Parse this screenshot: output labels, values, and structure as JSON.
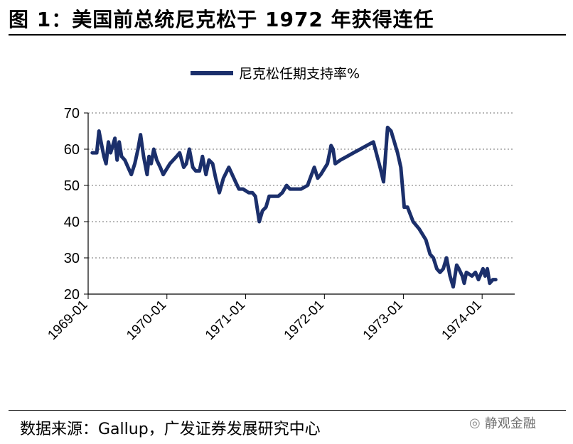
{
  "header": {
    "title": "图 1：美国前总统尼克松于 1972 年获得连任"
  },
  "footer": {
    "source": "数据来源：Gallup，广发证券发展研究中心",
    "watermark_text": "静观金融",
    "watermark_icon": "wechat-icon"
  },
  "colors": {
    "series": "#1b2f6b",
    "grid": "#a0a0a0",
    "axis": "#000000"
  },
  "chart_data": {
    "type": "line",
    "title": "",
    "xlabel": "",
    "ylabel": "",
    "ylim": [
      20,
      70
    ],
    "yticks": [
      20,
      30,
      40,
      50,
      60,
      70
    ],
    "xticks": [
      "1969-01",
      "1970-01",
      "1971-01",
      "1972-01",
      "1973-01",
      "1974-01"
    ],
    "grid": "horizontal dotted",
    "legend": "top-center",
    "series": [
      {
        "name": "尼克松任期支持率%",
        "points": [
          [
            "1969-01-20",
            59
          ],
          [
            "1969-02-01",
            59
          ],
          [
            "1969-02-10",
            59
          ],
          [
            "1969-02-20",
            65
          ],
          [
            "1969-03-05",
            61
          ],
          [
            "1969-03-15",
            58
          ],
          [
            "1969-03-25",
            56
          ],
          [
            "1969-04-05",
            62
          ],
          [
            "1969-04-15",
            59
          ],
          [
            "1969-04-25",
            61
          ],
          [
            "1969-05-05",
            63
          ],
          [
            "1969-05-15",
            57
          ],
          [
            "1969-05-25",
            62
          ],
          [
            "1969-06-05",
            58
          ],
          [
            "1969-06-20",
            57
          ],
          [
            "1969-07-05",
            55
          ],
          [
            "1969-07-20",
            53
          ],
          [
            "1969-08-05",
            56
          ],
          [
            "1969-08-20",
            60
          ],
          [
            "1969-09-01",
            64
          ],
          [
            "1969-09-15",
            58
          ],
          [
            "1969-10-01",
            53
          ],
          [
            "1969-10-10",
            58
          ],
          [
            "1969-10-20",
            56
          ],
          [
            "1969-11-01",
            60
          ],
          [
            "1969-11-15",
            57
          ],
          [
            "1969-12-01",
            55
          ],
          [
            "1969-12-15",
            53
          ],
          [
            "1970-01-15",
            56
          ],
          [
            "1970-02-15",
            58
          ],
          [
            "1970-03-01",
            59
          ],
          [
            "1970-03-20",
            55
          ],
          [
            "1970-04-01",
            56
          ],
          [
            "1970-04-15",
            60
          ],
          [
            "1970-05-01",
            55
          ],
          [
            "1970-05-15",
            54
          ],
          [
            "1970-06-01",
            54
          ],
          [
            "1970-06-15",
            58
          ],
          [
            "1970-07-01",
            53
          ],
          [
            "1970-07-15",
            57
          ],
          [
            "1970-08-01",
            56
          ],
          [
            "1970-08-15",
            52
          ],
          [
            "1970-09-01",
            48
          ],
          [
            "1970-09-20",
            52
          ],
          [
            "1970-10-15",
            55
          ],
          [
            "1970-11-15",
            51
          ],
          [
            "1970-12-01",
            49
          ],
          [
            "1970-12-20",
            49
          ],
          [
            "1971-01-15",
            48
          ],
          [
            "1971-02-01",
            48
          ],
          [
            "1971-02-15",
            47
          ],
          [
            "1971-03-05",
            40
          ],
          [
            "1971-03-20",
            43
          ],
          [
            "1971-04-05",
            44
          ],
          [
            "1971-04-20",
            47
          ],
          [
            "1971-05-10",
            47
          ],
          [
            "1971-06-01",
            47
          ],
          [
            "1971-06-20",
            48
          ],
          [
            "1971-07-10",
            50
          ],
          [
            "1971-07-25",
            49
          ],
          [
            "1971-08-15",
            49
          ],
          [
            "1971-09-15",
            49
          ],
          [
            "1971-10-15",
            50
          ],
          [
            "1971-11-15",
            55
          ],
          [
            "1971-12-01",
            52
          ],
          [
            "1971-12-15",
            53
          ],
          [
            "1972-01-15",
            56
          ],
          [
            "1972-02-01",
            61
          ],
          [
            "1972-02-10",
            60
          ],
          [
            "1972-02-20",
            56
          ],
          [
            "1972-03-15",
            57
          ],
          [
            "1972-04-15",
            58
          ],
          [
            "1972-05-15",
            59
          ],
          [
            "1972-06-15",
            60
          ],
          [
            "1972-07-15",
            61
          ],
          [
            "1972-08-15",
            62
          ],
          [
            "1972-09-15",
            55
          ],
          [
            "1972-10-01",
            51
          ],
          [
            "1972-10-20",
            66
          ],
          [
            "1972-11-05",
            65
          ],
          [
            "1972-11-20",
            62
          ],
          [
            "1972-12-05",
            59
          ],
          [
            "1972-12-20",
            55
          ],
          [
            "1973-01-05",
            44
          ],
          [
            "1973-01-20",
            44
          ],
          [
            "1973-02-15",
            40
          ],
          [
            "1973-03-15",
            38
          ],
          [
            "1973-04-15",
            35
          ],
          [
            "1973-05-05",
            31
          ],
          [
            "1973-05-20",
            30
          ],
          [
            "1973-06-05",
            27
          ],
          [
            "1973-06-20",
            26
          ],
          [
            "1973-07-05",
            27
          ],
          [
            "1973-07-20",
            30
          ],
          [
            "1973-08-05",
            25
          ],
          [
            "1973-08-20",
            22
          ],
          [
            "1973-09-05",
            28
          ],
          [
            "1973-09-15",
            27
          ],
          [
            "1973-10-01",
            25
          ],
          [
            "1973-10-10",
            23
          ],
          [
            "1973-10-20",
            26
          ],
          [
            "1973-11-15",
            25
          ],
          [
            "1973-12-01",
            26
          ],
          [
            "1973-12-15",
            24
          ],
          [
            "1974-01-05",
            27
          ],
          [
            "1974-01-15",
            25
          ],
          [
            "1974-01-25",
            27
          ],
          [
            "1974-02-05",
            23
          ],
          [
            "1974-02-20",
            24
          ],
          [
            "1974-03-05",
            24
          ]
        ]
      }
    ]
  }
}
